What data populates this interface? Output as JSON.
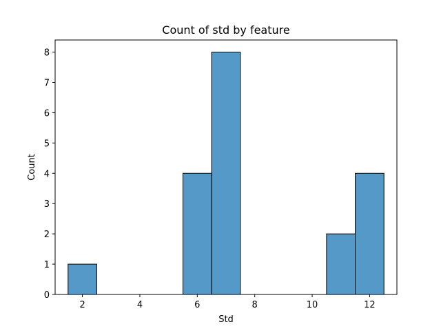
{
  "chart_data": {
    "type": "bar",
    "title": "Count of std by feature",
    "xlabel": "Std",
    "ylabel": "Count",
    "bins": [
      {
        "start": 1.5,
        "end": 2.5,
        "count": 1
      },
      {
        "start": 5.5,
        "end": 6.5,
        "count": 4
      },
      {
        "start": 6.5,
        "end": 7.5,
        "count": 8
      },
      {
        "start": 10.5,
        "end": 11.5,
        "count": 2
      },
      {
        "start": 11.5,
        "end": 12.5,
        "count": 4
      }
    ],
    "xlim": [
      1.05,
      12.95
    ],
    "ylim": [
      0,
      8.4
    ],
    "xticks": [
      2,
      4,
      6,
      8,
      10,
      12
    ],
    "yticks": [
      0,
      1,
      2,
      3,
      4,
      5,
      6,
      7,
      8
    ],
    "grid": false,
    "bar_color": "#5499c7",
    "edge_color": "#000000"
  }
}
